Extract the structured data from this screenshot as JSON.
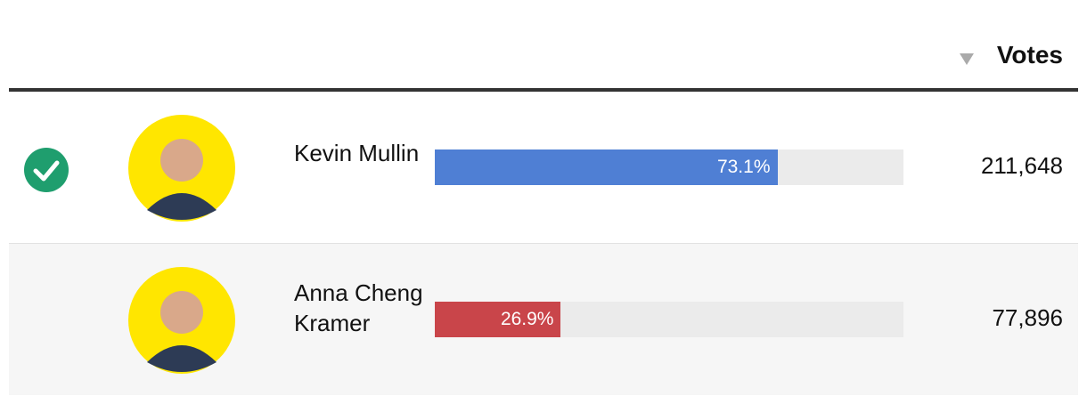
{
  "table": {
    "header": {
      "votes": "Votes"
    },
    "rows": [
      {
        "name": "Kevin Mullin",
        "percent": 73.1,
        "percent_label": "73.1%",
        "votes": "211,648",
        "winner": true,
        "color": "#4f7fd4"
      },
      {
        "name": "Anna Cheng Kramer",
        "percent": 26.9,
        "percent_label": "26.9%",
        "votes": "77,896",
        "winner": false,
        "color": "#c9454a"
      }
    ]
  }
}
